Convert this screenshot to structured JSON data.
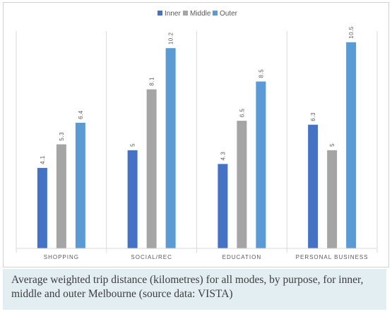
{
  "chart_data": {
    "type": "bar",
    "categories": [
      "SHOPPING",
      "SOCIAL/REC",
      "EDUCATION",
      "PERSONAL BUSINESS"
    ],
    "series": [
      {
        "name": "Inner",
        "values": [
          4.1,
          5,
          4.3,
          6.3
        ],
        "labels": [
          "4.1",
          "5",
          "4.3",
          "6.3"
        ],
        "color": "#4472c4"
      },
      {
        "name": "Middle",
        "values": [
          5.3,
          8.1,
          6.5,
          5
        ],
        "labels": [
          "5.3",
          "8.1",
          "6.5",
          "5"
        ],
        "color": "#a5a5a5"
      },
      {
        "name": "Outer",
        "values": [
          6.4,
          10.2,
          8.5,
          10.5
        ],
        "labels": [
          "6.4",
          "10.2",
          "8.5",
          "10.5"
        ],
        "color": "#5b9bd5"
      }
    ],
    "title": "",
    "xlabel": "",
    "ylabel": "",
    "ylim": [
      0,
      11.5
    ],
    "grid": false,
    "category_separators": true,
    "legend_position": "top-center"
  },
  "caption": "Average weighted trip distance (kilometres) for all modes, by purpose, for inner, middle and outer Melbourne (source data: VISTA)"
}
